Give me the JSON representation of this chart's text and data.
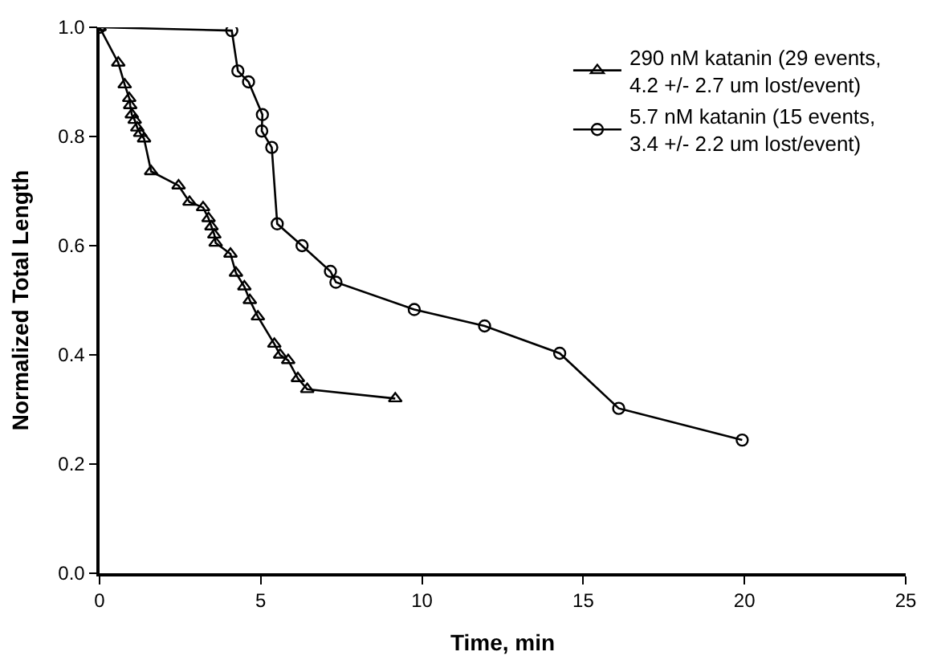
{
  "chart_data": {
    "type": "line",
    "xlabel": "Time, min",
    "ylabel": "Normalized Total Length",
    "xlim": [
      0,
      25
    ],
    "xticks": [
      0,
      5,
      10,
      15,
      20,
      25
    ],
    "ylim": [
      0,
      1.0
    ],
    "yticks": [
      {
        "value": 0,
        "label": "0.0"
      },
      {
        "value": 0.2,
        "label": "0.2"
      },
      {
        "value": 0.4,
        "label": "0.4"
      },
      {
        "value": 0.6,
        "label": "0.6"
      },
      {
        "value": 0.8,
        "label": "0.8"
      },
      {
        "value": 1.0,
        "label": "1.0"
      }
    ],
    "legend": "top right",
    "line_style": "solid",
    "series": [
      {
        "name": "290 nM katanin (29 events,\n4.2 +/- 2.7 um lost/event)",
        "color": "#000000",
        "marker": "triangle",
        "x": [
          0,
          0.58,
          0.78,
          0.92,
          0.95,
          1.0,
          1.09,
          1.17,
          1.26,
          1.38,
          1.6,
          2.45,
          2.79,
          3.21,
          3.38,
          3.47,
          3.56,
          3.6,
          4.06,
          4.23,
          4.49,
          4.66,
          4.91,
          5.42,
          5.6,
          5.85,
          6.15,
          6.44,
          9.17
        ],
        "values": [
          1.0,
          0.935,
          0.895,
          0.87,
          0.857,
          0.84,
          0.83,
          0.816,
          0.806,
          0.796,
          0.736,
          0.71,
          0.68,
          0.67,
          0.65,
          0.635,
          0.62,
          0.605,
          0.585,
          0.55,
          0.525,
          0.5,
          0.47,
          0.42,
          0.4,
          0.39,
          0.357,
          0.337,
          0.32
        ]
      },
      {
        "name": "5.7 nM katanin (15 events,\n3.4 +/- 2.2 um lost/event)",
        "color": "#000000",
        "marker": "circle",
        "x": [
          0,
          4.1,
          4.29,
          4.62,
          5.05,
          5.03,
          5.34,
          5.51,
          6.28,
          7.16,
          7.33,
          9.76,
          11.94,
          14.27,
          16.1,
          19.93
        ],
        "values": [
          1.0,
          0.994,
          0.92,
          0.9,
          0.84,
          0.81,
          0.78,
          0.64,
          0.6,
          0.553,
          0.533,
          0.483,
          0.453,
          0.403,
          0.302,
          0.244
        ]
      }
    ]
  }
}
